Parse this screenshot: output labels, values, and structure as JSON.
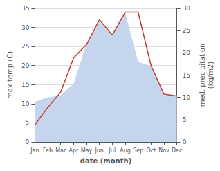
{
  "chart_data": {
    "type": "line",
    "xlabel": "date (month)",
    "ylabel": "max temp (C)",
    "y2label": "med. precipitation\n(kg/m2)",
    "categories": [
      "Jan",
      "Feb",
      "Mar",
      "Apr",
      "May",
      "Jun",
      "Jul",
      "Aug",
      "Sep",
      "Oct",
      "Nov",
      "Dec"
    ],
    "series": [
      {
        "type": "area",
        "axis": "y2",
        "color": "#c5d5ee",
        "values": [
          9.0,
          10.0,
          10.5,
          13.0,
          22.0,
          27.0,
          24.0,
          29.0,
          18.0,
          17.0,
          10.5,
          10.5
        ]
      },
      {
        "type": "line",
        "color": "#c0392b",
        "values": [
          4.5,
          9.0,
          13.0,
          22.0,
          25.5,
          32.0,
          28.0,
          34.0,
          34.0,
          20.0,
          12.5,
          12.0
        ]
      }
    ],
    "ylim": [
      0,
      35
    ],
    "yticks": [
      0,
      5,
      10,
      15,
      20,
      25,
      30,
      35
    ],
    "y2lim": [
      0,
      30
    ],
    "y2ticks": [
      0,
      5,
      10,
      15,
      20,
      25,
      30
    ],
    "grid": true
  }
}
